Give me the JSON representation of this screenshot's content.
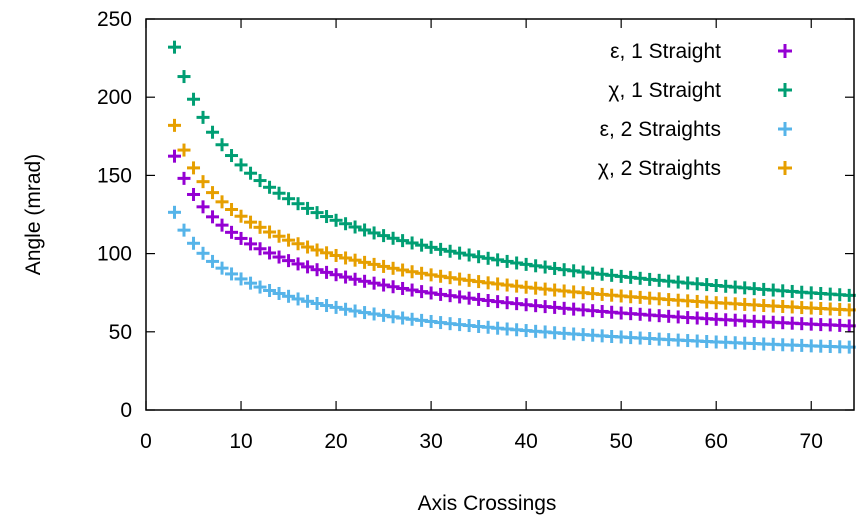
{
  "chart_data": {
    "type": "scatter",
    "xlabel": "Axis Crossings",
    "ylabel": "Angle (mrad)",
    "xlim": [
      0,
      74.5
    ],
    "ylim": [
      0,
      250
    ],
    "xticks": [
      0,
      10,
      20,
      30,
      40,
      50,
      60,
      70
    ],
    "yticks": [
      0,
      50,
      100,
      150,
      200,
      250
    ],
    "grid": false,
    "legend_position": "top-right",
    "marker": "plus",
    "x": [
      3,
      4,
      5,
      6,
      7,
      8,
      9,
      10,
      11,
      12,
      13,
      14,
      15,
      16,
      17,
      18,
      19,
      20,
      21,
      22,
      23,
      24,
      25,
      26,
      27,
      28,
      29,
      30,
      31,
      32,
      33,
      34,
      35,
      36,
      37,
      38,
      39,
      40,
      41,
      42,
      43,
      44,
      45,
      46,
      47,
      48,
      49,
      50,
      51,
      52,
      53,
      54,
      55,
      56,
      57,
      58,
      59,
      60,
      61,
      62,
      63,
      64,
      65,
      66,
      67,
      68,
      69,
      70,
      71,
      72,
      73,
      74
    ],
    "series": [
      {
        "name": "ε, 1 Straight",
        "color": "#9400d3",
        "values": [
          162.3,
          148.1,
          137.8,
          129.9,
          123.5,
          118.2,
          113.6,
          109.7,
          106.2,
          103.1,
          100.4,
          97.8,
          95.5,
          93.4,
          91.5,
          89.7,
          88.0,
          86.5,
          85.0,
          83.6,
          82.3,
          81.1,
          79.9,
          78.8,
          77.7,
          76.7,
          75.7,
          74.8,
          73.9,
          73.1,
          72.3,
          71.5,
          70.7,
          70.0,
          69.3,
          68.6,
          68.0,
          67.3,
          66.7,
          66.1,
          65.6,
          65.0,
          64.5,
          64.0,
          63.5,
          63.0,
          62.5,
          62.0,
          61.6,
          61.2,
          60.7,
          60.3,
          59.9,
          59.5,
          59.1,
          58.8,
          58.4,
          58.0,
          57.7,
          57.4,
          57.0,
          56.7,
          56.4,
          56.1,
          55.8,
          55.5,
          55.2,
          54.9,
          54.6,
          54.4,
          54.1,
          53.8
        ]
      },
      {
        "name": "χ, 1 Straight",
        "color": "#009e73",
        "values": [
          232.0,
          213.2,
          198.7,
          187.1,
          177.6,
          169.6,
          162.7,
          156.7,
          151.4,
          146.7,
          142.4,
          138.6,
          135.1,
          131.9,
          128.9,
          126.2,
          123.7,
          121.3,
          119.1,
          117.0,
          115.1,
          113.2,
          111.5,
          109.8,
          108.3,
          106.8,
          105.4,
          104.0,
          102.7,
          101.5,
          100.3,
          99.1,
          98.0,
          97.0,
          96.0,
          95.0,
          94.0,
          93.1,
          92.2,
          91.4,
          90.5,
          89.7,
          89.0,
          88.2,
          87.5,
          86.8,
          86.1,
          85.4,
          84.8,
          84.2,
          83.5,
          82.9,
          82.4,
          81.8,
          81.2,
          80.7,
          80.2,
          79.6,
          79.1,
          78.6,
          78.1,
          77.6,
          77.1,
          76.7,
          76.2,
          75.8,
          75.3,
          74.9,
          74.5,
          74.1,
          73.7,
          73.3
        ]
      },
      {
        "name": "ε, 2 Straights",
        "color": "#56b4e9",
        "values": [
          126.4,
          115.0,
          106.6,
          100.2,
          95.0,
          90.7,
          87.0,
          83.8,
          81.1,
          78.6,
          76.4,
          74.5,
          72.7,
          71.0,
          69.5,
          68.1,
          66.8,
          65.6,
          64.4,
          63.3,
          62.3,
          61.4,
          60.5,
          59.6,
          58.8,
          58.0,
          57.3,
          56.6,
          55.9,
          55.2,
          54.6,
          54.0,
          53.4,
          52.9,
          52.3,
          51.8,
          51.3,
          50.8,
          50.3,
          49.9,
          49.4,
          49.0,
          48.6,
          48.2,
          47.8,
          47.4,
          47.0,
          46.7,
          46.3,
          46.0,
          45.7,
          45.3,
          45.0,
          44.7,
          44.4,
          44.1,
          43.8,
          43.5,
          43.3,
          43.0,
          42.7,
          42.5,
          42.2,
          42.0,
          41.7,
          41.5,
          41.3,
          41.0,
          40.8,
          40.6,
          40.4,
          40.2
        ]
      },
      {
        "name": "χ, 2 Straights",
        "color": "#e69f00",
        "values": [
          182.0,
          166.2,
          154.8,
          146.0,
          139.0,
          133.1,
          128.2,
          123.9,
          120.1,
          116.8,
          113.8,
          111.1,
          108.6,
          106.3,
          104.2,
          102.3,
          100.5,
          98.8,
          97.2,
          95.8,
          94.4,
          93.1,
          91.8,
          90.6,
          89.5,
          88.4,
          87.4,
          86.4,
          85.5,
          84.6,
          83.7,
          82.9,
          82.1,
          81.3,
          80.6,
          79.9,
          79.2,
          78.5,
          77.9,
          77.3,
          76.7,
          76.1,
          75.5,
          75.0,
          74.4,
          73.9,
          73.4,
          72.9,
          72.4,
          72.0,
          71.5,
          71.1,
          70.6,
          70.2,
          69.8,
          69.4,
          69.0,
          68.6,
          68.3,
          67.9,
          67.5,
          67.2,
          66.8,
          66.5,
          66.2,
          65.9,
          65.5,
          65.2,
          64.9,
          64.6,
          64.3,
          64.0
        ]
      }
    ]
  }
}
